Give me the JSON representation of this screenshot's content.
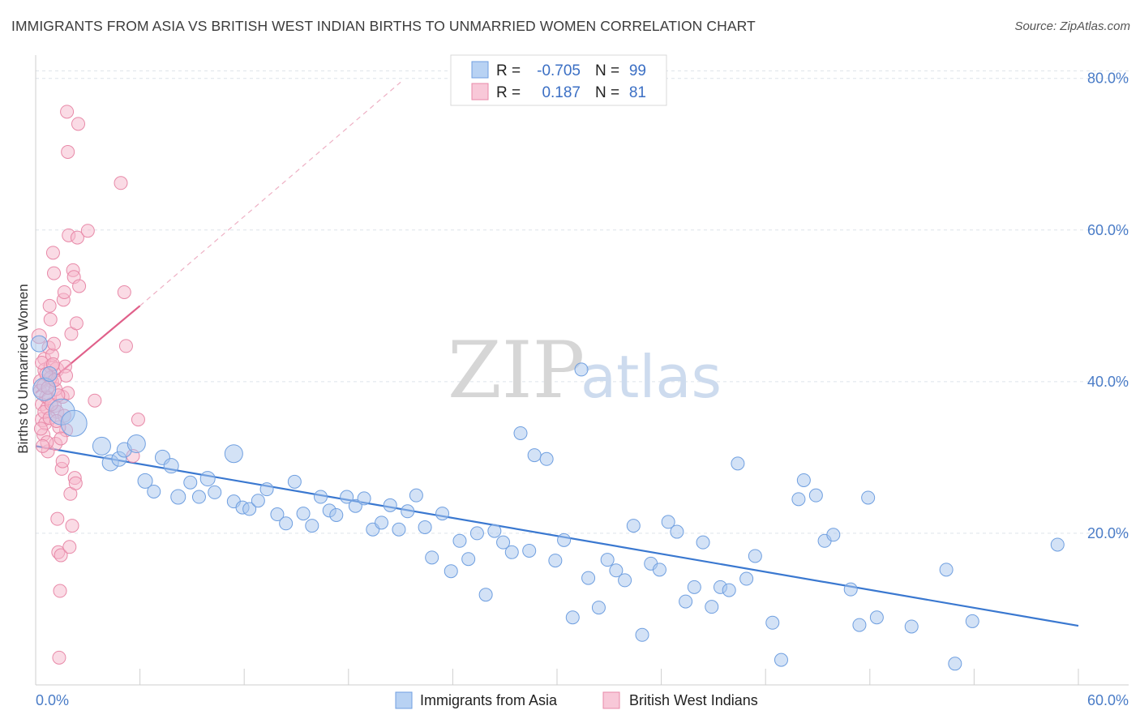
{
  "title": "IMMIGRANTS FROM ASIA VS BRITISH WEST INDIAN BIRTHS TO UNMARRIED WOMEN CORRELATION CHART",
  "source": "Source: ZipAtlas.com",
  "watermark": {
    "zip": "ZIP",
    "atlas": "atlas"
  },
  "colors": {
    "blue_fill": "#a8c6ee",
    "blue_stroke": "#6f9fe0",
    "blue_line": "#3a78d0",
    "pink_fill": "#f5b8cc",
    "pink_stroke": "#e889a8",
    "pink_line": "#e0608a",
    "axis_text": "#4a7cc7",
    "grid": "#dde3ea"
  },
  "legend_top": {
    "rows": [
      {
        "r_label": "R =",
        "r_value": "-0.705",
        "n_label": "N =",
        "n_value": "99"
      },
      {
        "r_label": "R =",
        "r_value": "0.187",
        "n_label": "N =",
        "n_value": "81"
      }
    ]
  },
  "legend_bottom": [
    "Immigrants from Asia",
    "British West Indians"
  ],
  "chart_data": {
    "type": "scatter",
    "title": "IMMIGRANTS FROM ASIA VS BRITISH WEST INDIAN BIRTHS TO UNMARRIED WOMEN CORRELATION CHART",
    "xlabel": "",
    "ylabel": "Births to Unmarried Women",
    "xlim": [
      0,
      60
    ],
    "ylim": [
      0,
      82
    ],
    "x_tick_labels": [
      "0.0%",
      "60.0%"
    ],
    "y_ticks": [
      20,
      40,
      60,
      80
    ],
    "y_tick_labels": [
      "20.0%",
      "40.0%",
      "60.0%",
      "80.0%"
    ],
    "grid": true,
    "legend_position": "top-center",
    "series": [
      {
        "name": "Immigrants from Asia",
        "color": "#a8c6ee",
        "r": -0.705,
        "n": 99,
        "trend": {
          "x": [
            0,
            60
          ],
          "y": [
            31.5,
            7.8
          ]
        },
        "points": [
          [
            0.2,
            45.0,
            10
          ],
          [
            0.5,
            39.0,
            14
          ],
          [
            0.8,
            41.0,
            9
          ],
          [
            1.5,
            36.0,
            16
          ],
          [
            2.2,
            34.5,
            16
          ],
          [
            3.8,
            31.5,
            11
          ],
          [
            4.3,
            29.3,
            10
          ],
          [
            4.8,
            29.8,
            9
          ],
          [
            5.1,
            31.0,
            9
          ],
          [
            5.8,
            31.8,
            11
          ],
          [
            6.3,
            26.9,
            9
          ],
          [
            6.8,
            25.5,
            8
          ],
          [
            7.3,
            30.0,
            9
          ],
          [
            7.8,
            28.9,
            9
          ],
          [
            8.2,
            24.8,
            9
          ],
          [
            8.9,
            26.7,
            8
          ],
          [
            9.4,
            24.8,
            8
          ],
          [
            9.9,
            27.2,
            9
          ],
          [
            10.3,
            25.4,
            8
          ],
          [
            11.4,
            30.5,
            11
          ],
          [
            11.4,
            24.2,
            8
          ],
          [
            11.9,
            23.4,
            8
          ],
          [
            12.3,
            23.2,
            8
          ],
          [
            12.8,
            24.3,
            8
          ],
          [
            13.3,
            25.8,
            8
          ],
          [
            13.9,
            22.5,
            8
          ],
          [
            14.4,
            21.3,
            8
          ],
          [
            14.9,
            26.8,
            8
          ],
          [
            15.4,
            22.6,
            8
          ],
          [
            15.9,
            21.0,
            8
          ],
          [
            16.4,
            24.8,
            8
          ],
          [
            16.9,
            23.0,
            8
          ],
          [
            17.3,
            22.4,
            8
          ],
          [
            17.9,
            24.8,
            8
          ],
          [
            18.4,
            23.6,
            8
          ],
          [
            18.9,
            24.6,
            8
          ],
          [
            19.4,
            20.5,
            8
          ],
          [
            19.9,
            21.4,
            8
          ],
          [
            20.4,
            23.7,
            8
          ],
          [
            20.9,
            20.5,
            8
          ],
          [
            21.4,
            22.9,
            8
          ],
          [
            21.9,
            25.0,
            8
          ],
          [
            22.4,
            20.8,
            8
          ],
          [
            22.8,
            16.8,
            8
          ],
          [
            23.4,
            22.6,
            8
          ],
          [
            23.9,
            15.0,
            8
          ],
          [
            24.4,
            19.0,
            8
          ],
          [
            24.9,
            16.6,
            8
          ],
          [
            25.4,
            20.0,
            8
          ],
          [
            25.9,
            11.9,
            8
          ],
          [
            26.4,
            20.3,
            8
          ],
          [
            26.9,
            18.8,
            8
          ],
          [
            27.4,
            17.5,
            8
          ],
          [
            27.9,
            33.2,
            8
          ],
          [
            28.4,
            17.7,
            8
          ],
          [
            28.7,
            30.3,
            8
          ],
          [
            29.4,
            29.8,
            8
          ],
          [
            29.9,
            16.4,
            8
          ],
          [
            30.4,
            19.1,
            8
          ],
          [
            30.9,
            8.9,
            8
          ],
          [
            31.4,
            41.6,
            8
          ],
          [
            31.8,
            14.1,
            8
          ],
          [
            32.4,
            10.2,
            8
          ],
          [
            32.9,
            16.5,
            8
          ],
          [
            33.4,
            15.1,
            8
          ],
          [
            33.9,
            13.8,
            8
          ],
          [
            34.4,
            21.0,
            8
          ],
          [
            34.9,
            6.6,
            8
          ],
          [
            35.4,
            16.0,
            8
          ],
          [
            35.9,
            15.2,
            8
          ],
          [
            36.4,
            21.5,
            8
          ],
          [
            36.9,
            20.2,
            8
          ],
          [
            37.4,
            11.0,
            8
          ],
          [
            37.9,
            12.9,
            8
          ],
          [
            38.4,
            18.8,
            8
          ],
          [
            38.9,
            10.3,
            8
          ],
          [
            39.4,
            12.9,
            8
          ],
          [
            39.9,
            12.5,
            8
          ],
          [
            40.4,
            29.2,
            8
          ],
          [
            40.9,
            14.0,
            8
          ],
          [
            41.4,
            17.0,
            8
          ],
          [
            42.4,
            8.2,
            8
          ],
          [
            42.9,
            3.3,
            8
          ],
          [
            43.9,
            24.5,
            8
          ],
          [
            44.2,
            27.0,
            8
          ],
          [
            44.9,
            25.0,
            8
          ],
          [
            45.4,
            19.0,
            8
          ],
          [
            45.9,
            19.8,
            8
          ],
          [
            46.9,
            12.6,
            8
          ],
          [
            47.4,
            7.9,
            8
          ],
          [
            47.9,
            24.7,
            8
          ],
          [
            48.4,
            8.9,
            8
          ],
          [
            50.4,
            7.7,
            8
          ],
          [
            52.4,
            15.2,
            8
          ],
          [
            52.9,
            2.8,
            8
          ],
          [
            53.9,
            8.4,
            8
          ],
          [
            58.8,
            18.5,
            8
          ]
        ]
      },
      {
        "name": "British West Indians",
        "color": "#f5b8cc",
        "r": 0.187,
        "n": 81,
        "trend": {
          "x": [
            0,
            6
          ],
          "y": [
            38.5,
            50.0
          ],
          "dash_x": [
            6,
            21
          ],
          "dash_y": [
            50.0,
            79.5
          ]
        },
        "points": [
          [
            0.2,
            46.0,
            9
          ],
          [
            0.3,
            40.0,
            9
          ],
          [
            0.35,
            37.0,
            8
          ],
          [
            0.4,
            35.0,
            9
          ],
          [
            0.45,
            33.0,
            8
          ],
          [
            0.5,
            43.0,
            8
          ],
          [
            0.55,
            41.5,
            9
          ],
          [
            0.6,
            38.0,
            8
          ],
          [
            0.65,
            36.5,
            8
          ],
          [
            0.7,
            30.8,
            8
          ],
          [
            0.75,
            44.5,
            8
          ],
          [
            0.8,
            50.0,
            8
          ],
          [
            0.85,
            48.2,
            8
          ],
          [
            0.9,
            42.0,
            9
          ],
          [
            0.95,
            40.0,
            8
          ],
          [
            1.0,
            57.0,
            8
          ],
          [
            1.05,
            54.3,
            8
          ],
          [
            1.1,
            36.8,
            8
          ],
          [
            1.15,
            31.8,
            8
          ],
          [
            1.2,
            41.6,
            9
          ],
          [
            1.25,
            21.9,
            8
          ],
          [
            1.3,
            17.5,
            8
          ],
          [
            1.35,
            3.6,
            8
          ],
          [
            1.4,
            12.4,
            8
          ],
          [
            1.45,
            17.1,
            8
          ],
          [
            1.5,
            28.5,
            8
          ],
          [
            1.55,
            38.0,
            8
          ],
          [
            1.6,
            50.8,
            8
          ],
          [
            1.65,
            51.8,
            8
          ],
          [
            1.7,
            42.0,
            8
          ],
          [
            1.75,
            33.6,
            8
          ],
          [
            1.8,
            75.6,
            8
          ],
          [
            1.85,
            70.3,
            8
          ],
          [
            1.9,
            59.3,
            8
          ],
          [
            1.95,
            18.2,
            8
          ],
          [
            2.0,
            25.2,
            8
          ],
          [
            2.05,
            46.3,
            8
          ],
          [
            2.1,
            21.0,
            8
          ],
          [
            2.15,
            54.7,
            8
          ],
          [
            2.2,
            53.8,
            8
          ],
          [
            2.25,
            27.3,
            8
          ],
          [
            2.3,
            26.6,
            8
          ],
          [
            2.35,
            47.7,
            8
          ],
          [
            2.4,
            59.0,
            8
          ],
          [
            2.45,
            74.0,
            8
          ],
          [
            2.5,
            52.6,
            8
          ],
          [
            3.0,
            59.9,
            8
          ],
          [
            3.4,
            37.5,
            8
          ],
          [
            4.9,
            66.2,
            8
          ],
          [
            5.1,
            51.8,
            8
          ],
          [
            5.2,
            44.7,
            8
          ],
          [
            5.6,
            30.2,
            8
          ],
          [
            5.9,
            35.0,
            8
          ],
          [
            0.25,
            38.8,
            8
          ],
          [
            0.35,
            42.5,
            8
          ],
          [
            0.45,
            39.5,
            8
          ],
          [
            0.55,
            34.5,
            8
          ],
          [
            0.65,
            32.0,
            8
          ],
          [
            0.75,
            37.8,
            8
          ],
          [
            0.85,
            40.5,
            8
          ],
          [
            0.95,
            43.5,
            8
          ],
          [
            1.05,
            45.0,
            8
          ],
          [
            1.15,
            39.0,
            8
          ],
          [
            1.25,
            36.0,
            8
          ],
          [
            1.35,
            34.0,
            8
          ],
          [
            1.45,
            32.5,
            8
          ],
          [
            1.55,
            29.5,
            8
          ],
          [
            1.65,
            35.5,
            8
          ],
          [
            1.75,
            40.8,
            8
          ],
          [
            1.85,
            38.5,
            8
          ],
          [
            0.3,
            33.8,
            8
          ],
          [
            0.4,
            31.5,
            8
          ],
          [
            0.5,
            36.0,
            8
          ],
          [
            0.6,
            41.0,
            8
          ],
          [
            0.7,
            39.2,
            8
          ],
          [
            0.8,
            35.2,
            8
          ],
          [
            0.9,
            37.0,
            8
          ],
          [
            1.0,
            42.3,
            8
          ],
          [
            1.1,
            40.2,
            8
          ],
          [
            1.2,
            34.8,
            8
          ],
          [
            1.3,
            38.2,
            8
          ]
        ]
      }
    ]
  }
}
